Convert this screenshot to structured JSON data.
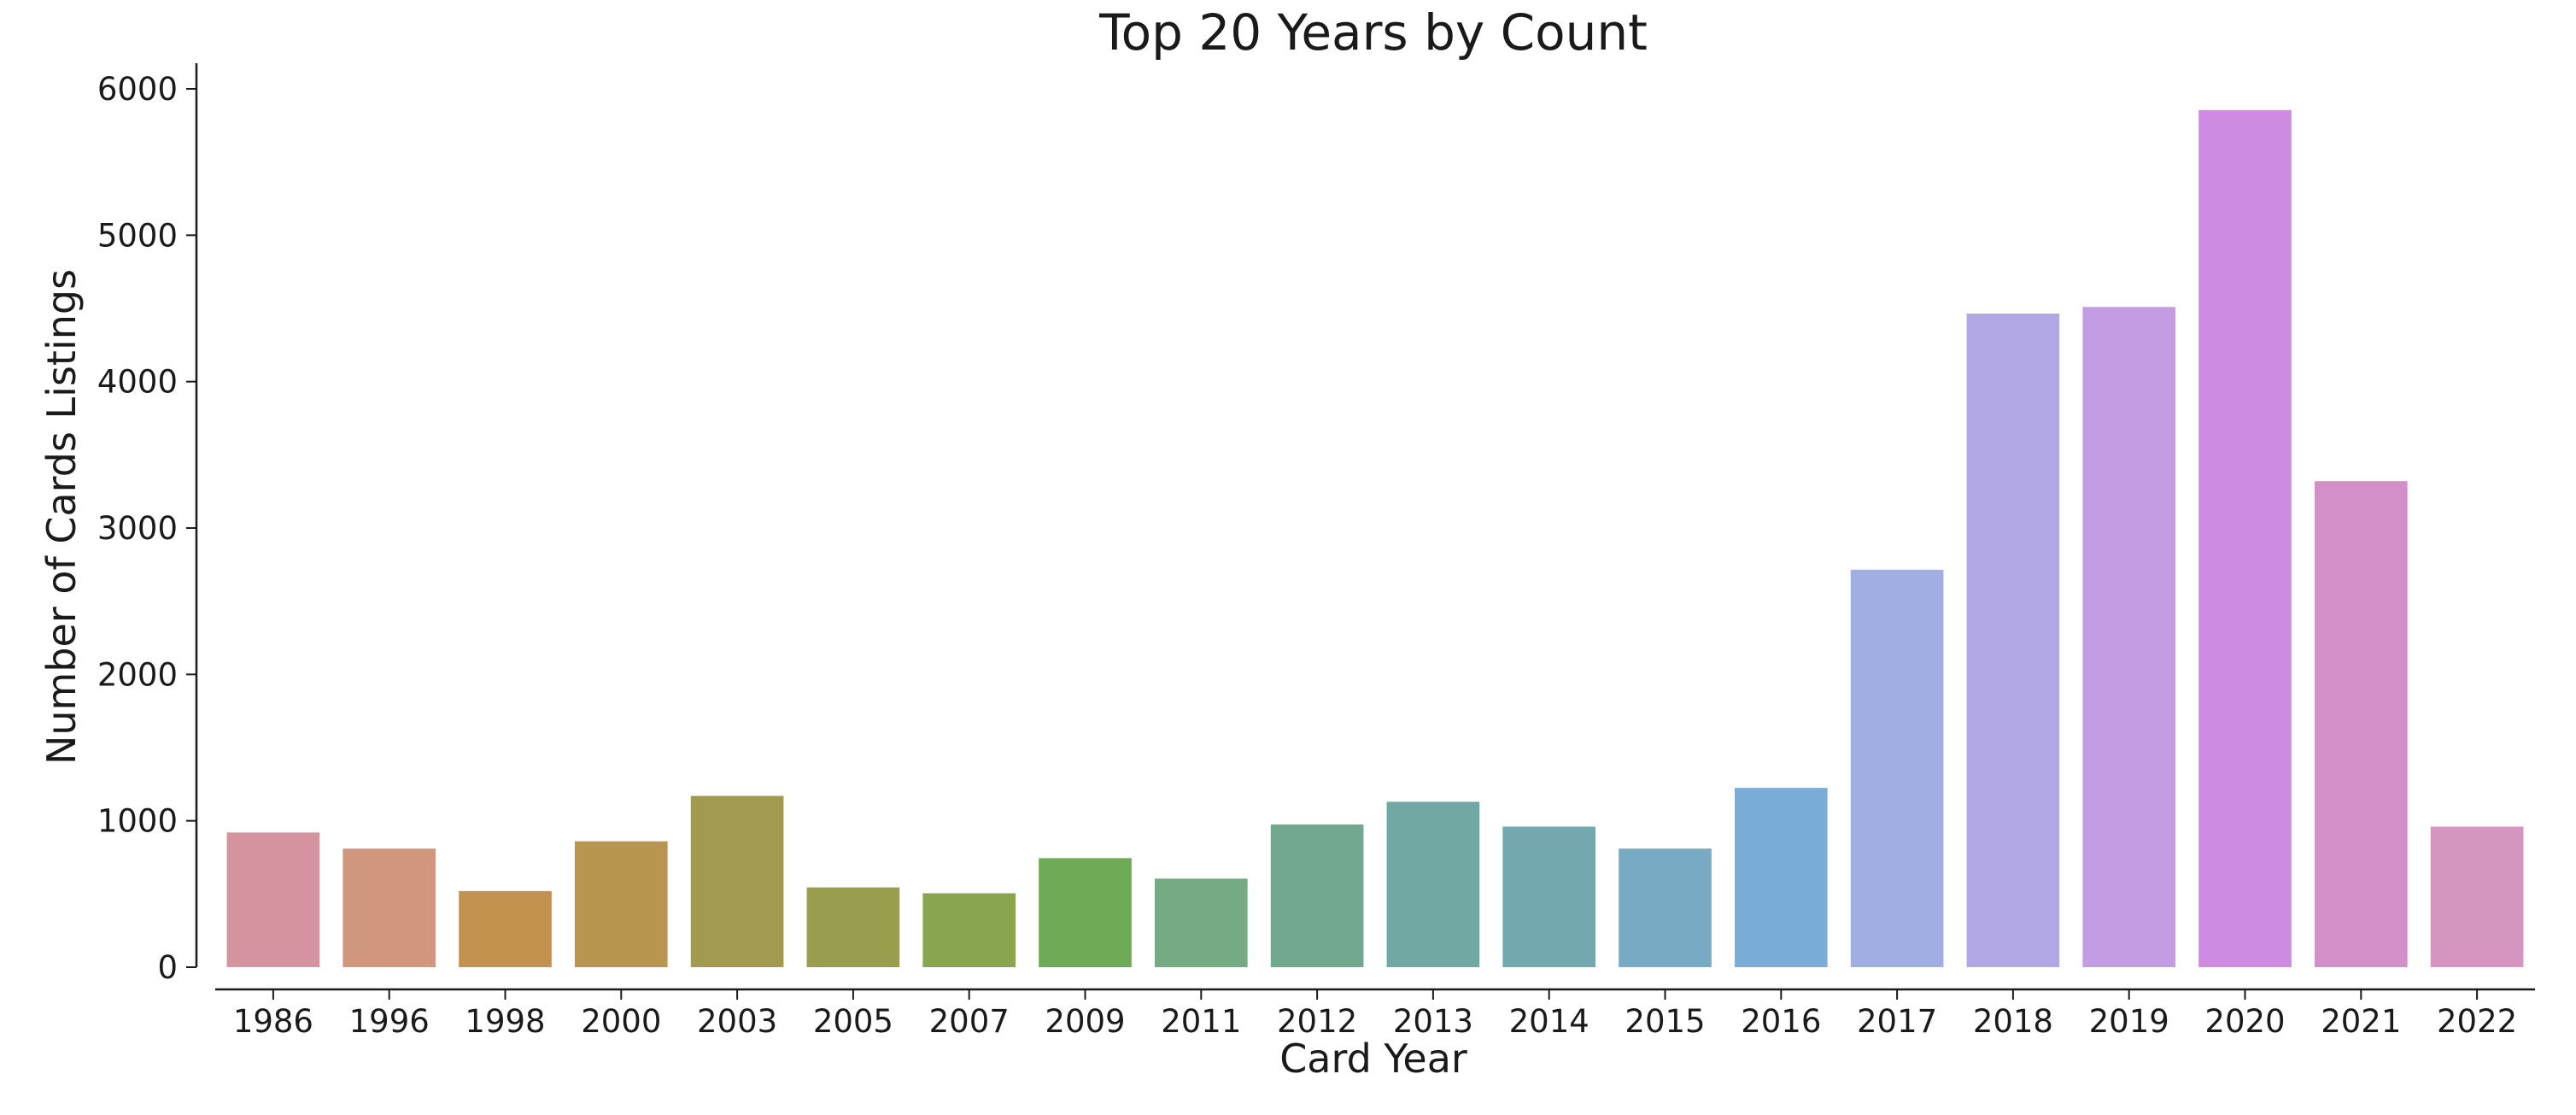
{
  "chart_data": {
    "type": "bar",
    "title": "Top 20 Years by Count",
    "xlabel": "Card Year",
    "ylabel": "Number of Cards Listings",
    "categories": [
      "1986",
      "1996",
      "1998",
      "2000",
      "2003",
      "2005",
      "2007",
      "2009",
      "2011",
      "2012",
      "2013",
      "2014",
      "2015",
      "2016",
      "2017",
      "2018",
      "2019",
      "2020",
      "2021",
      "2022"
    ],
    "values": [
      920,
      810,
      520,
      860,
      1170,
      545,
      505,
      745,
      605,
      975,
      1130,
      960,
      810,
      1225,
      2715,
      4465,
      4510,
      5855,
      3320,
      960
    ],
    "colors": [
      "#d4939f",
      "#d0977e",
      "#c4924f",
      "#b9964f",
      "#a29a4e",
      "#989e4e",
      "#8aa550",
      "#6fab57",
      "#74ab84",
      "#73a890",
      "#72a8a3",
      "#73a8b0",
      "#79aac4",
      "#7aaed9",
      "#a0aee3",
      "#b3a8e6",
      "#c49ce3",
      "#cd8be2",
      "#d38fc8",
      "#d496be"
    ],
    "yticks": [
      0,
      1000,
      2000,
      3000,
      4000,
      5000,
      6000
    ],
    "ylim": [
      0,
      6150
    ],
    "grid": false,
    "legend": "none"
  }
}
